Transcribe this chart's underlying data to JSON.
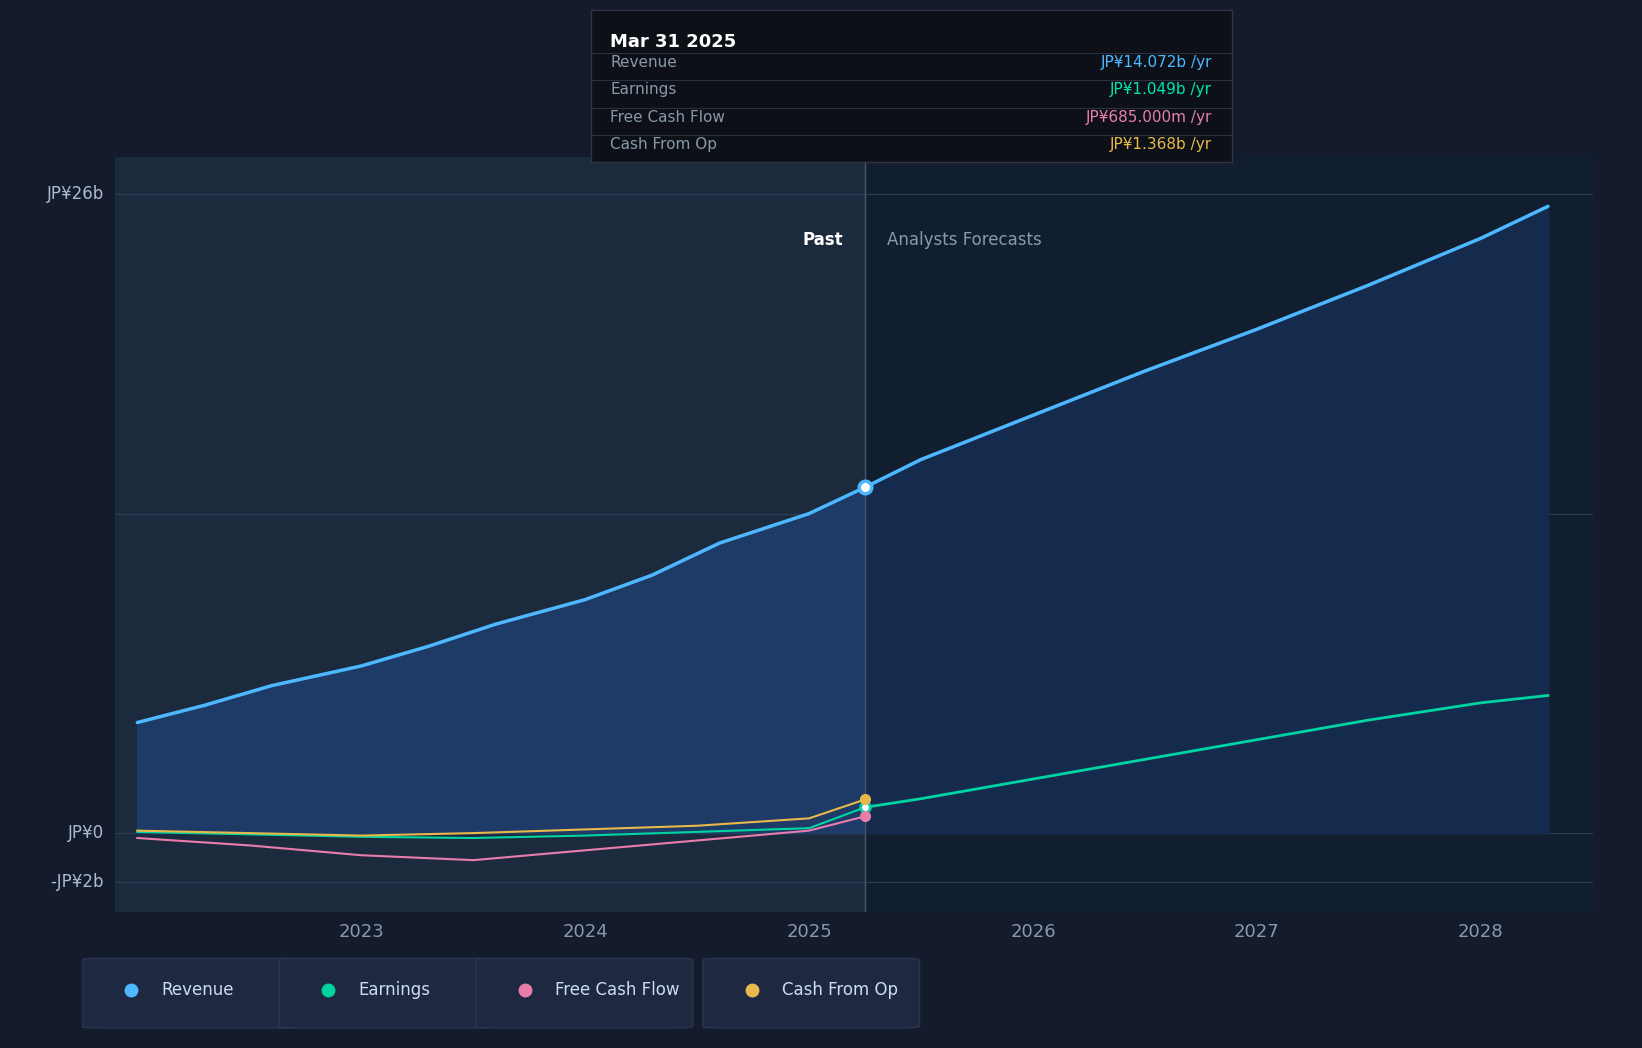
{
  "bg_color": "#141b2d",
  "plot_bg_past": "#1c2a3e",
  "plot_bg_forecast": "#172236",
  "grid_color": "#2a3550",
  "y_labels": [
    "JP¥26b",
    "JP¥0",
    "-JP¥2b"
  ],
  "y_ticks": [
    26,
    0,
    -2
  ],
  "x_ticks": [
    2023,
    2024,
    2025,
    2026,
    2027,
    2028
  ],
  "divider_x": 2025.25,
  "past_label": "Past",
  "forecast_label": "Analysts Forecasts",
  "tooltip_title": "Mar 31 2025",
  "tooltip_rows": [
    {
      "label": "Revenue",
      "value": "JP¥14.072b /yr",
      "color": "#4db8ff"
    },
    {
      "label": "Earnings",
      "value": "JP¥1.049b /yr",
      "color": "#00e5b0"
    },
    {
      "label": "Free Cash Flow",
      "value": "JP¥685.000m /yr",
      "color": "#e87dac"
    },
    {
      "label": "Cash From Op",
      "value": "JP¥1.368b /yr",
      "color": "#e8b84b"
    }
  ],
  "revenue_color": "#4db8ff",
  "earnings_color": "#00d4a0",
  "fcf_color": "#e87dac",
  "cfop_color": "#e8b84b",
  "revenue_fill_past": "#1e3a5f",
  "revenue_fill_forecast": "#162d4a",
  "revenue_x": [
    2022.0,
    2022.3,
    2022.6,
    2023.0,
    2023.3,
    2023.6,
    2024.0,
    2024.3,
    2024.6,
    2025.0,
    2025.25,
    2025.5,
    2026.0,
    2026.5,
    2027.0,
    2027.5,
    2028.0,
    2028.3
  ],
  "revenue_y": [
    4.5,
    5.2,
    6.0,
    6.8,
    7.6,
    8.5,
    9.5,
    10.5,
    11.8,
    13.0,
    14.072,
    15.2,
    17.0,
    18.8,
    20.5,
    22.3,
    24.2,
    25.5
  ],
  "earnings_x": [
    2022.0,
    2022.5,
    2023.0,
    2023.5,
    2024.0,
    2024.5,
    2025.0,
    2025.25,
    2025.5,
    2026.0,
    2026.5,
    2027.0,
    2027.5,
    2028.0,
    2028.3
  ],
  "earnings_y": [
    0.05,
    -0.05,
    -0.15,
    -0.2,
    -0.1,
    0.05,
    0.2,
    1.049,
    1.4,
    2.2,
    3.0,
    3.8,
    4.6,
    5.3,
    5.6
  ],
  "fcf_x": [
    2022.0,
    2022.5,
    2023.0,
    2023.5,
    2024.0,
    2024.5,
    2025.0,
    2025.25
  ],
  "fcf_y": [
    -0.2,
    -0.5,
    -0.9,
    -1.1,
    -0.7,
    -0.3,
    0.1,
    0.685
  ],
  "cfop_x": [
    2022.0,
    2022.5,
    2023.0,
    2023.5,
    2024.0,
    2024.5,
    2025.0,
    2025.25
  ],
  "cfop_y": [
    0.1,
    0.0,
    -0.1,
    0.0,
    0.15,
    0.3,
    0.6,
    1.368
  ],
  "dot_revenue": [
    2025.25,
    14.072
  ],
  "dot_earnings": [
    2025.25,
    1.049
  ],
  "dot_fcf": [
    2025.25,
    0.685
  ],
  "dot_cfop": [
    2025.25,
    1.368
  ],
  "ylim_min": -3.2,
  "ylim_max": 27.5,
  "xlim_min": 2021.9,
  "xlim_max": 2028.5,
  "legend_items": [
    "Revenue",
    "Earnings",
    "Free Cash Flow",
    "Cash From Op"
  ],
  "legend_colors": [
    "#4db8ff",
    "#00d4a0",
    "#e87dac",
    "#e8b84b"
  ]
}
